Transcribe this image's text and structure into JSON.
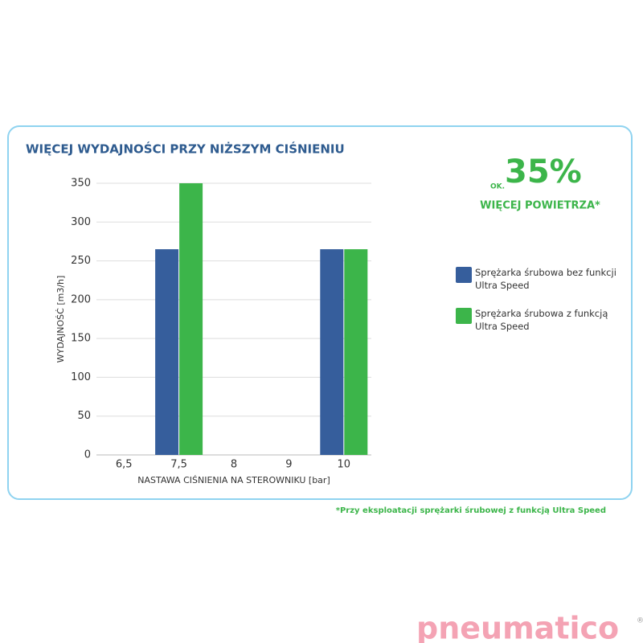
{
  "chart_data": {
    "type": "bar",
    "title": "WIĘCEJ WYDAJNOŚCI PRZY NIŻSZYM CIŚNIENIU",
    "categories": [
      "6,5",
      "7,5",
      "8",
      "9",
      "10"
    ],
    "series": [
      {
        "name": "Sprężarka śrubowa bez funkcji Ultra Speed",
        "color": "#365e9c",
        "values": [
          null,
          265,
          null,
          null,
          265
        ]
      },
      {
        "name": "Sprężarka śrubowa z funkcją Ultra Speed",
        "color": "#3cb54a",
        "values": [
          null,
          350,
          null,
          null,
          265
        ]
      }
    ],
    "ylim": [
      0,
      350
    ],
    "yticks": [
      0,
      50,
      100,
      150,
      200,
      250,
      300,
      350
    ],
    "grid": true,
    "x_label": "NASTAWA CIŚNIENIA NA STEROWNIKU [bar]",
    "y_label": "WYDAJNOŚĆ [m3/h]",
    "annotations": {
      "callout_prefix": "OK.",
      "callout_value": "35%",
      "callout_text": "WIĘCEJ POWIETRZA*",
      "footnote": "*Przy eksploatacji sprężarki śrubowej z funkcją Ultra Speed"
    }
  },
  "logo": {
    "text": "pneumatico",
    "mark": "®"
  }
}
